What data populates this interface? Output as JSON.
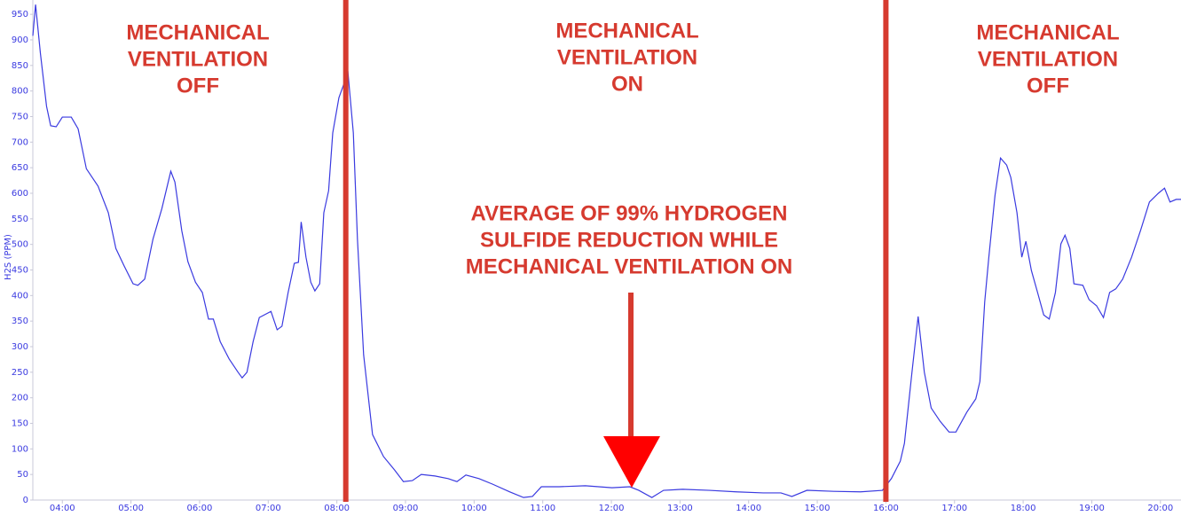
{
  "chart_data": {
    "type": "line",
    "y_label": "H2S (PPM)",
    "color": "#3a3ae0",
    "x": [
      3.57,
      3.61,
      3.68,
      3.77,
      3.83,
      3.91,
      4.0,
      4.13,
      4.23,
      4.35,
      4.52,
      4.67,
      4.78,
      4.9,
      5.03,
      5.1,
      5.2,
      5.32,
      5.45,
      5.58,
      5.64,
      5.74,
      5.83,
      5.94,
      6.04,
      6.13,
      6.2,
      6.3,
      6.43,
      6.56,
      6.62,
      6.69,
      6.78,
      6.87,
      7.04,
      7.13,
      7.2,
      7.29,
      7.38,
      7.44,
      7.48,
      7.55,
      7.62,
      7.68,
      7.75,
      7.81,
      7.88,
      7.94,
      8.03,
      8.1,
      8.16,
      8.24,
      8.3,
      8.39,
      8.52,
      8.68,
      8.84,
      8.97,
      9.1,
      9.23,
      9.43,
      9.62,
      9.75,
      9.88,
      10.07,
      10.27,
      10.52,
      10.72,
      10.85,
      10.98,
      11.24,
      11.62,
      12.01,
      12.27,
      12.4,
      12.59,
      12.76,
      13.04,
      13.43,
      13.82,
      14.21,
      14.47,
      14.63,
      14.85,
      15.24,
      15.63,
      15.95,
      16.08,
      16.21,
      16.27,
      16.38,
      16.47,
      16.56,
      16.66,
      16.79,
      16.92,
      17.02,
      17.18,
      17.31,
      17.37,
      17.44,
      17.5,
      17.59,
      17.67,
      17.76,
      17.82,
      17.91,
      17.98,
      18.04,
      18.12,
      18.21,
      18.3,
      18.38,
      18.47,
      18.55,
      18.61,
      18.68,
      18.74,
      18.87,
      18.96,
      19.07,
      19.17,
      19.26,
      19.35,
      19.45,
      19.58,
      19.71,
      19.84,
      19.97,
      20.06,
      20.14,
      20.23,
      20.3
    ],
    "values": [
      908,
      969,
      874,
      770,
      732,
      730,
      749,
      749,
      726,
      648,
      614,
      562,
      492,
      458,
      423,
      420,
      432,
      510,
      570,
      643,
      622,
      527,
      466,
      426,
      406,
      354,
      354,
      310,
      276,
      250,
      239,
      250,
      310,
      357,
      369,
      333,
      340,
      406,
      463,
      465,
      544,
      475,
      426,
      409,
      423,
      562,
      605,
      718,
      787,
      813,
      839,
      718,
      510,
      284,
      128,
      85,
      59,
      36,
      38,
      50,
      47,
      42,
      36,
      49,
      42,
      31,
      16,
      5,
      7,
      26,
      26,
      28,
      24,
      26,
      19,
      5,
      19,
      21,
      19,
      16,
      14,
      14,
      7,
      19,
      17,
      16,
      19,
      42,
      76,
      111,
      250,
      359,
      250,
      180,
      154,
      133,
      133,
      172,
      198,
      232,
      388,
      475,
      596,
      669,
      655,
      631,
      562,
      475,
      506,
      449,
      406,
      362,
      354,
      406,
      501,
      518,
      492,
      423,
      420,
      392,
      380,
      357,
      406,
      413,
      432,
      475,
      527,
      583,
      600,
      610,
      583,
      588,
      588
    ],
    "xlim": [
      3.57,
      20.3
    ],
    "ylim": [
      0,
      978
    ],
    "yticks": [
      0,
      50,
      100,
      150,
      200,
      250,
      300,
      350,
      400,
      450,
      500,
      550,
      600,
      650,
      700,
      750,
      800,
      850,
      900,
      950
    ],
    "xticks": [
      {
        "value": 4,
        "label": "04:00"
      },
      {
        "value": 5,
        "label": "05:00"
      },
      {
        "value": 6,
        "label": "06:00"
      },
      {
        "value": 7,
        "label": "07:00"
      },
      {
        "value": 8,
        "label": "08:00"
      },
      {
        "value": 9,
        "label": "09:00"
      },
      {
        "value": 10,
        "label": "10:00"
      },
      {
        "value": 11,
        "label": "11:00"
      },
      {
        "value": 12,
        "label": "12:00"
      },
      {
        "value": 13,
        "label": "13:00"
      },
      {
        "value": 14,
        "label": "14:00"
      },
      {
        "value": 15,
        "label": "15:00"
      },
      {
        "value": 16,
        "label": "16:00"
      },
      {
        "value": 17,
        "label": "17:00"
      },
      {
        "value": 18,
        "label": "18:00"
      },
      {
        "value": 19,
        "label": "19:00"
      },
      {
        "value": 20,
        "label": "20:00"
      }
    ],
    "vlines": [
      8.13,
      16
    ],
    "vline_color": "#d63a2f",
    "annotations": [
      {
        "lines": [
          "MECHANICAL",
          "VENTILATION",
          "OFF"
        ]
      },
      {
        "lines": [
          "MECHANICAL",
          "VENTILATION",
          "ON"
        ]
      },
      {
        "lines": [
          "MECHANICAL",
          "VENTILATION",
          "OFF"
        ]
      },
      {
        "lines": [
          "AVERAGE OF 99% HYDROGEN",
          "SULFIDE REDUCTION WHILE",
          "MECHANICAL VENTILATION ON"
        ]
      }
    ]
  }
}
